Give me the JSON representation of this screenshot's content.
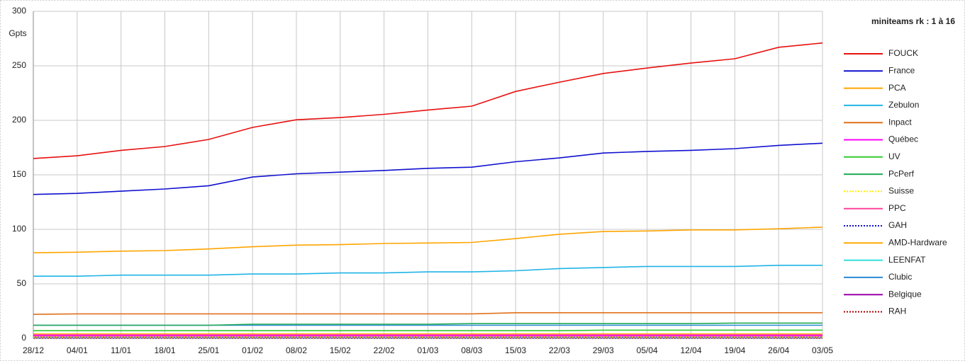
{
  "chart_data": {
    "type": "line",
    "title": "miniteams rk : 1 à 16",
    "y_label": "Gpts",
    "categories": [
      "28/12",
      "04/01",
      "11/01",
      "18/01",
      "25/01",
      "01/02",
      "08/02",
      "15/02",
      "22/02",
      "01/03",
      "08/03",
      "15/03",
      "22/03",
      "29/03",
      "05/04",
      "12/04",
      "19/04",
      "26/04",
      "03/05"
    ],
    "ylim": [
      0,
      300
    ],
    "yticks": [
      0,
      50,
      100,
      150,
      200,
      250,
      300
    ],
    "grid": true,
    "legend": "right",
    "series": [
      {
        "name": "FOUCK",
        "color": "#e81010",
        "values": [
          165,
          167.5,
          172.5,
          176,
          182.5,
          193.5,
          200.5,
          202.5,
          205.5,
          209.5,
          213,
          226.5,
          235,
          243,
          248,
          252.5,
          256.5,
          267,
          271
        ]
      },
      {
        "name": "France",
        "color": "#1010d0",
        "values": [
          132,
          133,
          135,
          137,
          140,
          148,
          151,
          152.5,
          154,
          156,
          157,
          162,
          165.5,
          170,
          171.5,
          172.5,
          174,
          177,
          179
        ]
      },
      {
        "name": "PCA",
        "color": "#ffa500",
        "values": [
          78.5,
          79,
          80,
          80.5,
          82,
          84,
          85.5,
          86,
          87,
          87.5,
          88,
          91.5,
          95.5,
          98,
          98.5,
          99.5,
          99.5,
          100.5,
          102
        ]
      },
      {
        "name": "Zebulon",
        "color": "#20b4e6",
        "values": [
          57,
          57,
          58,
          58,
          58,
          59,
          59,
          60,
          60,
          61,
          61,
          62,
          64,
          65,
          66,
          66,
          66,
          67,
          67
        ]
      },
      {
        "name": "Inpact",
        "color": "#e0701c",
        "values": [
          22,
          22.5,
          22.5,
          22.5,
          22.5,
          22.5,
          22.5,
          22.5,
          22.5,
          22.5,
          22.5,
          23.5,
          23.5,
          23.5,
          23.5,
          23.5,
          23.5,
          23.5,
          23.5
        ]
      },
      {
        "name": "Québec",
        "color": "#ff00ff",
        "values": [
          3,
          3,
          3,
          3,
          3,
          3,
          3,
          3,
          3,
          3,
          3,
          3,
          3,
          3,
          3,
          3,
          3,
          3,
          3
        ]
      },
      {
        "name": "UV",
        "color": "#33cc33",
        "values": [
          7,
          7,
          7,
          7,
          7,
          7,
          7,
          7,
          7,
          7,
          7,
          7,
          7,
          7.5,
          7.5,
          7.5,
          7.5,
          7.5,
          7.5
        ]
      },
      {
        "name": "PcPerf",
        "color": "#22aa55",
        "values": [
          12,
          12,
          12,
          12,
          12,
          13,
          13,
          13,
          13,
          13,
          13.5,
          13.5,
          13.5,
          13.5,
          13.5,
          13.5,
          14,
          14,
          14
        ]
      },
      {
        "name": "Suisse",
        "color": "#ffee00",
        "line_style": "dotted",
        "values": [
          1,
          1,
          1,
          1,
          1,
          1,
          1,
          1,
          1,
          1,
          1,
          1,
          1,
          1,
          1,
          1,
          1,
          1,
          1
        ]
      },
      {
        "name": "PPC",
        "color": "#ff4499",
        "values": [
          2,
          2,
          2,
          2,
          2,
          2,
          2,
          2,
          2,
          2,
          2,
          2,
          2,
          2,
          2,
          2,
          2,
          2,
          2
        ]
      },
      {
        "name": "GAH",
        "color": "#1010c0",
        "line_style": "dotted",
        "values": [
          0.5,
          0.5,
          0.5,
          0.5,
          0.5,
          0.5,
          0.5,
          0.5,
          0.5,
          0.5,
          0.5,
          0.5,
          0.5,
          0.5,
          0.5,
          0.5,
          0.5,
          0.5,
          0.5
        ]
      },
      {
        "name": "AMD-Hardware",
        "color": "#ffaa00",
        "values": [
          4,
          4,
          4,
          4,
          4,
          4,
          4,
          4,
          4,
          4,
          4,
          4,
          4,
          4,
          4,
          4,
          4,
          4,
          4
        ]
      },
      {
        "name": "LEENFAT",
        "color": "#33dddd",
        "values": [
          1.5,
          1.5,
          1.5,
          1.5,
          1.5,
          1.5,
          1.5,
          1.5,
          1.5,
          1.5,
          1.5,
          1.5,
          1.5,
          1.5,
          1.5,
          1.5,
          1.5,
          1.5,
          1.5
        ]
      },
      {
        "name": "Clubic",
        "color": "#2a8ad4",
        "values": [
          12,
          12,
          12,
          12,
          12,
          12,
          12,
          12,
          12,
          12,
          12,
          12,
          12,
          12,
          12,
          12,
          12,
          12,
          12
        ]
      },
      {
        "name": "Belgique",
        "color": "#9900aa",
        "values": [
          1,
          1,
          1,
          1,
          1,
          1,
          1,
          1,
          1,
          1,
          1,
          1,
          1,
          1,
          1,
          1,
          1,
          1,
          1
        ]
      },
      {
        "name": "RAH",
        "color": "#aa0000",
        "line_style": "dotted",
        "values": [
          0.2,
          0.2,
          0.2,
          0.2,
          0.2,
          0.2,
          0.2,
          0.2,
          0.2,
          0.2,
          0.2,
          0.2,
          0.2,
          0.2,
          0.2,
          0.2,
          0.2,
          0.2,
          0.2
        ]
      }
    ]
  }
}
